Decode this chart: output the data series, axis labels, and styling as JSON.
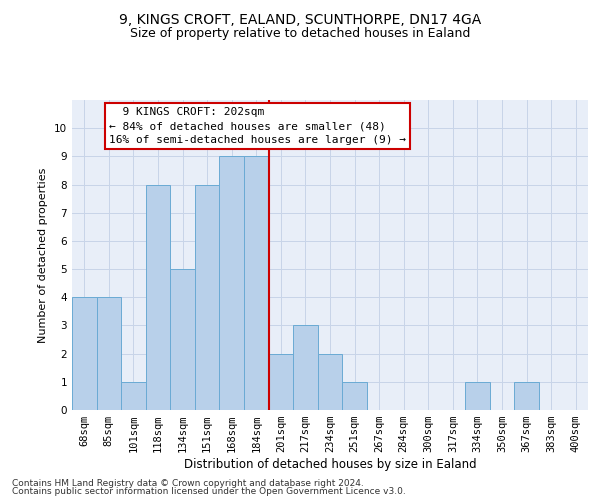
{
  "title1": "9, KINGS CROFT, EALAND, SCUNTHORPE, DN17 4GA",
  "title2": "Size of property relative to detached houses in Ealand",
  "xlabel": "Distribution of detached houses by size in Ealand",
  "ylabel": "Number of detached properties",
  "footnote1": "Contains HM Land Registry data © Crown copyright and database right 2024.",
  "footnote2": "Contains public sector information licensed under the Open Government Licence v3.0.",
  "annotation_line1": "  9 KINGS CROFT: 202sqm  ",
  "annotation_line2": "← 84% of detached houses are smaller (48)",
  "annotation_line3": "16% of semi-detached houses are larger (9) →",
  "bin_labels": [
    "68sqm",
    "85sqm",
    "101sqm",
    "118sqm",
    "134sqm",
    "151sqm",
    "168sqm",
    "184sqm",
    "201sqm",
    "217sqm",
    "234sqm",
    "251sqm",
    "267sqm",
    "284sqm",
    "300sqm",
    "317sqm",
    "334sqm",
    "350sqm",
    "367sqm",
    "383sqm",
    "400sqm"
  ],
  "bar_heights": [
    4,
    4,
    1,
    8,
    5,
    8,
    9,
    9,
    2,
    3,
    2,
    1,
    0,
    0,
    0,
    0,
    1,
    0,
    1,
    0,
    0
  ],
  "bar_color": "#b8d0ea",
  "bar_edge_color": "#6aaad4",
  "marker_index": 8,
  "marker_color": "#cc0000",
  "ylim": [
    0,
    11
  ],
  "yticks": [
    0,
    1,
    2,
    3,
    4,
    5,
    6,
    7,
    8,
    9,
    10,
    11
  ],
  "grid_color": "#c8d4e8",
  "background_color": "#e8eef8",
  "title1_fontsize": 10,
  "title2_fontsize": 9,
  "xlabel_fontsize": 8.5,
  "ylabel_fontsize": 8,
  "tick_fontsize": 7.5,
  "annotation_fontsize": 8,
  "footnote_fontsize": 6.5
}
